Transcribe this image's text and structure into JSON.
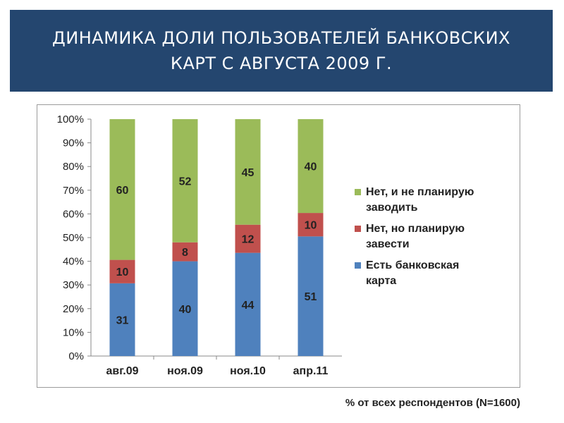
{
  "header": {
    "title_line1": "ДИНАМИКА ДОЛИ ПОЛЬЗОВАТЕЛЕЙ БАНКОВСКИХ",
    "title_line2": "КАРТ С АВГУСТА 2009 Г."
  },
  "footnote": "% от всех респондентов (N=1600)",
  "chart_data": {
    "type": "bar",
    "stacked": true,
    "percent_stacked": true,
    "categories": [
      "авг.09",
      "ноя.09",
      "ноя.10",
      "апр.11"
    ],
    "series": [
      {
        "name": "Есть банковская карта",
        "values": [
          31,
          40,
          44,
          51
        ],
        "color": "#4f81bd"
      },
      {
        "name": "Нет, но планирую завести",
        "values": [
          10,
          8,
          12,
          10
        ],
        "color": "#c0504d"
      },
      {
        "name": "Нет, и не планирую заводить",
        "values": [
          60,
          52,
          45,
          40
        ],
        "color": "#9bbb59"
      }
    ],
    "legend_lines": [
      {
        "series": 2,
        "lines": [
          "Нет, и не планирую",
          "заводить"
        ]
      },
      {
        "series": 1,
        "lines": [
          "Нет, но планирую",
          "завести"
        ]
      },
      {
        "series": 0,
        "lines": [
          "Есть банковская",
          "карта"
        ]
      }
    ],
    "y_ticks": [
      "0%",
      "10%",
      "20%",
      "30%",
      "40%",
      "50%",
      "60%",
      "70%",
      "80%",
      "90%",
      "100%"
    ],
    "ylim": [
      0,
      100
    ],
    "grid": false,
    "legend_position": "right"
  }
}
